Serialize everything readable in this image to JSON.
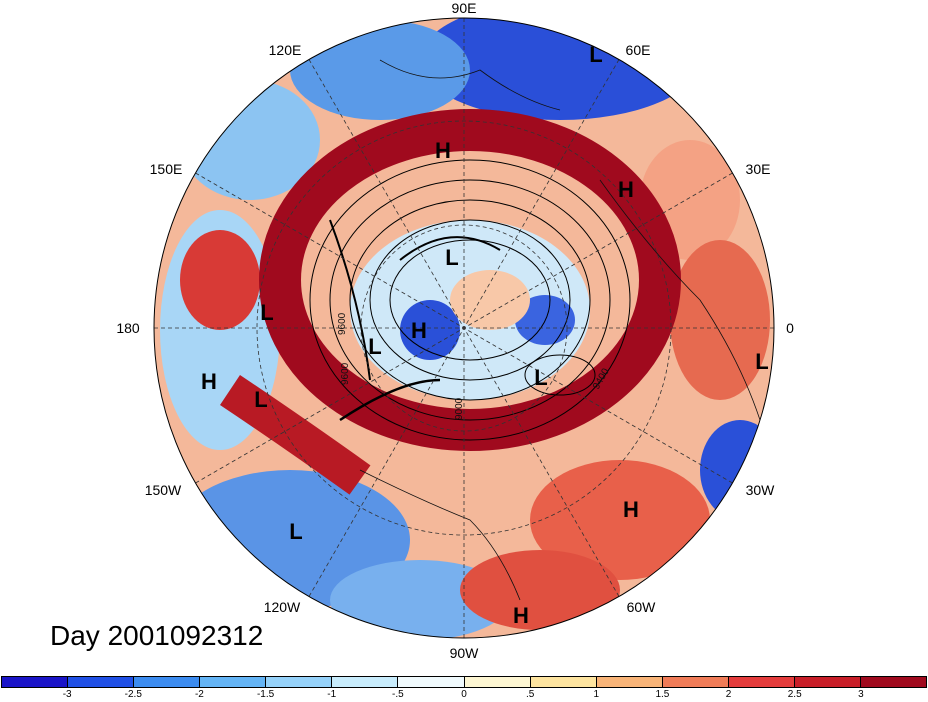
{
  "date_label": "Day 2001092312",
  "longitude_labels": [
    "90E",
    "60E",
    "30E",
    "0",
    "30W",
    "60W",
    "90W",
    "120W",
    "150W",
    "180",
    "150E",
    "120E"
  ],
  "pressure_centers": [
    "L",
    "H",
    "H",
    "L",
    "L",
    "H",
    "L",
    "H",
    "L",
    "L",
    "H",
    "L",
    "L",
    "H",
    "H"
  ],
  "contour_labels": [
    "9600",
    "9600",
    "9400",
    "9000"
  ],
  "colorbar": {
    "colors": [
      "#1a14c8",
      "#2050e6",
      "#3c8cf0",
      "#64b4f5",
      "#96d2fa",
      "#c8ecfc",
      "#f0fafd",
      "#fdf6d2",
      "#fde4a0",
      "#f8b478",
      "#f07c58",
      "#e43c3c",
      "#c81e28",
      "#a00a1e"
    ],
    "tick_labels": [
      "-3",
      "-2.5",
      "-2",
      "-1.5",
      "-1",
      "-.5",
      "0",
      ".5",
      "1",
      "1.5",
      "2",
      "2.5",
      "3"
    ]
  }
}
